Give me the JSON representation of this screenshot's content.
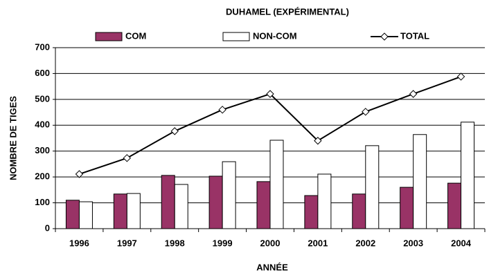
{
  "chart_data": {
    "type": "bar_line",
    "title": "DUHAMEL (EXPÉRIMENTAL)",
    "xlabel": "ANNÉE",
    "ylabel": "NOMBRE DE TIGES",
    "categories": [
      "1996",
      "1997",
      "1998",
      "1999",
      "2000",
      "2001",
      "2002",
      "2003",
      "2004"
    ],
    "series": [
      {
        "name": "COM",
        "type": "bar",
        "color": "#993366",
        "values": [
          110,
          134,
          206,
          203,
          182,
          128,
          134,
          160,
          176
        ]
      },
      {
        "name": "NON-COM",
        "type": "bar",
        "color": "#ffffff",
        "values": [
          104,
          136,
          171,
          259,
          342,
          211,
          321,
          364,
          412
        ]
      },
      {
        "name": "TOTAL",
        "type": "line",
        "color": "#000000",
        "values": [
          211,
          273,
          377,
          460,
          521,
          340,
          452,
          521,
          588
        ]
      }
    ],
    "ylim": [
      0,
      700
    ],
    "yticks": [
      0,
      100,
      200,
      300,
      400,
      500,
      600,
      700
    ],
    "grid": true
  }
}
